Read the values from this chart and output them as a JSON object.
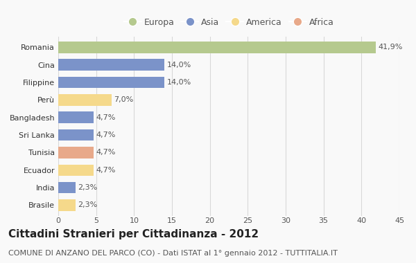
{
  "countries": [
    "Romania",
    "Cina",
    "Filippine",
    "Perù",
    "Bangladesh",
    "Sri Lanka",
    "Tunisia",
    "Ecuador",
    "India",
    "Brasile"
  ],
  "values": [
    41.9,
    14.0,
    14.0,
    7.0,
    4.7,
    4.7,
    4.7,
    4.7,
    2.3,
    2.3
  ],
  "labels": [
    "41,9%",
    "14,0%",
    "14,0%",
    "7,0%",
    "4,7%",
    "4,7%",
    "4,7%",
    "4,7%",
    "2,3%",
    "2,3%"
  ],
  "colors": [
    "#b5c98e",
    "#7b93c9",
    "#7b93c9",
    "#f5d98b",
    "#7b93c9",
    "#7b93c9",
    "#e8a98a",
    "#f5d98b",
    "#7b93c9",
    "#f5d98b"
  ],
  "legend_labels": [
    "Europa",
    "Asia",
    "America",
    "Africa"
  ],
  "legend_colors": [
    "#b5c98e",
    "#7b93c9",
    "#f5d98b",
    "#e8a98a"
  ],
  "title": "Cittadini Stranieri per Cittadinanza - 2012",
  "subtitle": "COMUNE DI ANZANO DEL PARCO (CO) - Dati ISTAT al 1° gennaio 2012 - TUTTITALIA.IT",
  "xlim": [
    0,
    45
  ],
  "xticks": [
    0,
    5,
    10,
    15,
    20,
    25,
    30,
    35,
    40,
    45
  ],
  "background_color": "#f9f9f9",
  "grid_color": "#d8d8d8",
  "title_fontsize": 11,
  "subtitle_fontsize": 8,
  "label_fontsize": 8,
  "tick_fontsize": 8,
  "legend_fontsize": 9
}
